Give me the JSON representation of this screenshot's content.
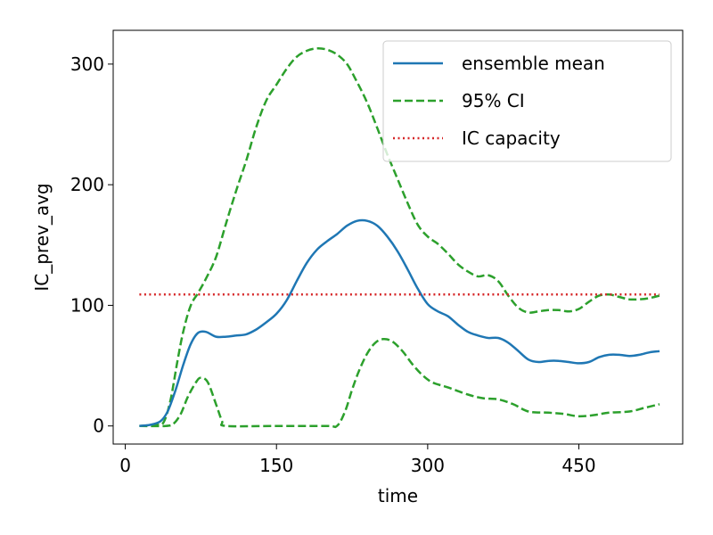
{
  "chart_data": {
    "type": "line",
    "title": "",
    "xlabel": "time",
    "ylabel": "IC_prev_avg",
    "xlim": [
      -12,
      553
    ],
    "ylim": [
      -15,
      328
    ],
    "xticks": [
      0,
      150,
      300,
      450
    ],
    "yticks": [
      0,
      100,
      200,
      300
    ],
    "grid": false,
    "legend_position": "upper right",
    "series": [
      {
        "name": "ensemble mean",
        "color": "#1f77b4",
        "style": "solid",
        "points": [
          [
            14,
            0
          ],
          [
            25,
            1
          ],
          [
            35,
            4
          ],
          [
            42,
            12
          ],
          [
            50,
            30
          ],
          [
            58,
            52
          ],
          [
            65,
            68
          ],
          [
            72,
            77
          ],
          [
            80,
            78
          ],
          [
            90,
            74
          ],
          [
            100,
            74
          ],
          [
            110,
            75
          ],
          [
            120,
            76
          ],
          [
            130,
            80
          ],
          [
            140,
            86
          ],
          [
            150,
            93
          ],
          [
            160,
            104
          ],
          [
            170,
            120
          ],
          [
            180,
            135
          ],
          [
            190,
            146
          ],
          [
            200,
            153
          ],
          [
            210,
            159
          ],
          [
            220,
            166
          ],
          [
            230,
            170
          ],
          [
            240,
            170
          ],
          [
            250,
            166
          ],
          [
            260,
            157
          ],
          [
            270,
            145
          ],
          [
            280,
            130
          ],
          [
            290,
            114
          ],
          [
            300,
            101
          ],
          [
            310,
            95
          ],
          [
            320,
            91
          ],
          [
            330,
            84
          ],
          [
            340,
            78
          ],
          [
            350,
            75
          ],
          [
            360,
            73
          ],
          [
            370,
            73
          ],
          [
            380,
            69
          ],
          [
            390,
            62
          ],
          [
            400,
            55
          ],
          [
            410,
            53
          ],
          [
            420,
            54
          ],
          [
            430,
            54
          ],
          [
            440,
            53
          ],
          [
            450,
            52
          ],
          [
            460,
            53
          ],
          [
            470,
            57
          ],
          [
            480,
            59
          ],
          [
            490,
            59
          ],
          [
            500,
            58
          ],
          [
            510,
            59
          ],
          [
            520,
            61
          ],
          [
            530,
            62
          ]
        ]
      },
      {
        "name": "95% CI",
        "color": "#2ca02c",
        "style": "dashed",
        "points": [
          [
            14,
            0
          ],
          [
            30,
            1
          ],
          [
            38,
            3
          ],
          [
            45,
            22
          ],
          [
            52,
            55
          ],
          [
            58,
            80
          ],
          [
            65,
            100
          ],
          [
            72,
            110
          ],
          [
            80,
            122
          ],
          [
            90,
            140
          ],
          [
            100,
            168
          ],
          [
            110,
            195
          ],
          [
            120,
            220
          ],
          [
            130,
            248
          ],
          [
            140,
            270
          ],
          [
            150,
            283
          ],
          [
            160,
            296
          ],
          [
            170,
            306
          ],
          [
            180,
            311
          ],
          [
            190,
            313
          ],
          [
            200,
            312
          ],
          [
            210,
            308
          ],
          [
            220,
            300
          ],
          [
            230,
            285
          ],
          [
            240,
            268
          ],
          [
            250,
            247
          ],
          [
            260,
            225
          ],
          [
            270,
            205
          ],
          [
            280,
            185
          ],
          [
            290,
            167
          ],
          [
            300,
            157
          ],
          [
            310,
            151
          ],
          [
            320,
            143
          ],
          [
            330,
            134
          ],
          [
            340,
            128
          ],
          [
            350,
            124
          ],
          [
            360,
            125
          ],
          [
            370,
            120
          ],
          [
            380,
            108
          ],
          [
            390,
            98
          ],
          [
            400,
            94
          ],
          [
            410,
            95
          ],
          [
            420,
            96
          ],
          [
            430,
            96
          ],
          [
            440,
            95
          ],
          [
            450,
            97
          ],
          [
            460,
            103
          ],
          [
            470,
            108
          ],
          [
            480,
            109
          ],
          [
            490,
            107
          ],
          [
            500,
            105
          ],
          [
            510,
            105
          ],
          [
            520,
            106
          ],
          [
            530,
            108
          ]
        ]
      },
      {
        "name": "",
        "color": "#2ca02c",
        "style": "dashed",
        "points": [
          [
            14,
            0
          ],
          [
            40,
            0
          ],
          [
            48,
            2
          ],
          [
            55,
            10
          ],
          [
            62,
            24
          ],
          [
            70,
            36
          ],
          [
            75,
            40
          ],
          [
            82,
            36
          ],
          [
            90,
            18
          ],
          [
            96,
            4
          ],
          [
            100,
            0
          ],
          [
            150,
            0
          ],
          [
            200,
            0
          ],
          [
            210,
            0
          ],
          [
            218,
            12
          ],
          [
            225,
            30
          ],
          [
            232,
            46
          ],
          [
            240,
            60
          ],
          [
            248,
            69
          ],
          [
            256,
            72
          ],
          [
            265,
            70
          ],
          [
            275,
            62
          ],
          [
            285,
            51
          ],
          [
            295,
            42
          ],
          [
            305,
            36
          ],
          [
            320,
            32
          ],
          [
            340,
            26
          ],
          [
            355,
            23
          ],
          [
            370,
            22
          ],
          [
            385,
            18
          ],
          [
            400,
            12
          ],
          [
            420,
            11
          ],
          [
            435,
            10
          ],
          [
            450,
            8
          ],
          [
            465,
            9
          ],
          [
            480,
            11
          ],
          [
            500,
            12
          ],
          [
            515,
            15
          ],
          [
            530,
            18
          ]
        ]
      },
      {
        "name": "IC capacity",
        "color": "#d62728",
        "style": "dotted",
        "points": [
          [
            14,
            109
          ],
          [
            530,
            109
          ]
        ]
      }
    ]
  }
}
